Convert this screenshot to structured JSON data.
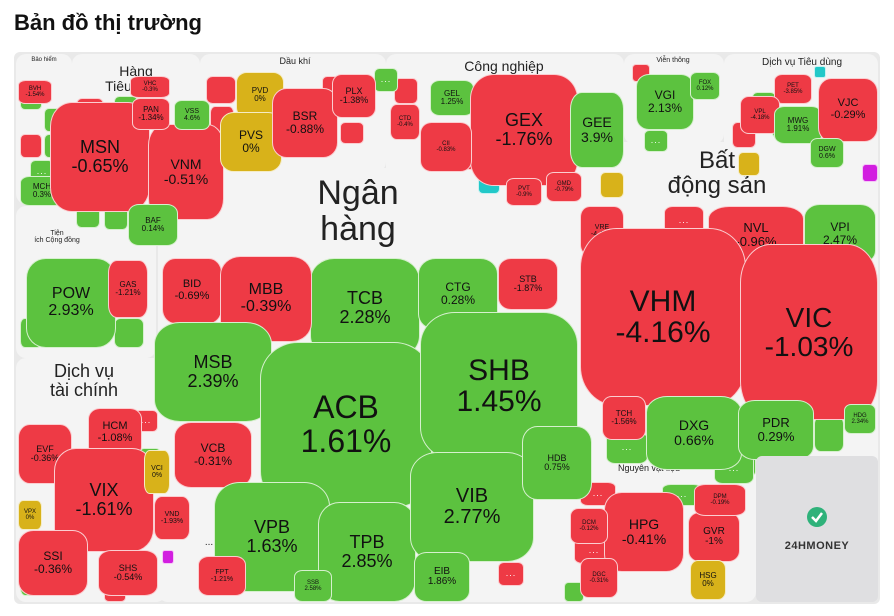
{
  "page": {
    "title": "Bản đồ thị trường"
  },
  "colors": {
    "up": "#5cc23f",
    "down": "#ee3a45",
    "flat": "#d8b21a",
    "ceiling": "#d21ee0",
    "floor": "#22c8c8"
  },
  "brand": {
    "logo_text": "24HMONEY",
    "icon": "24hmoney-logo-icon"
  },
  "more_label": "...",
  "groups": [
    {
      "id": "bao-hiem",
      "label": "Bảo hiểm"
    },
    {
      "id": "hang-tieu-dung",
      "label": "Hàng\nTiêu dùng"
    },
    {
      "id": "dau-khi",
      "label": "Dầu khí"
    },
    {
      "id": "cong-nghiep",
      "label": "Công nghiệp"
    },
    {
      "id": "vien-thong",
      "label": "Viễn thông"
    },
    {
      "id": "dich-vu-tieu-dung",
      "label": "Dịch vụ Tiêu dùng"
    },
    {
      "id": "ngan-hang",
      "label": "Ngân\nhàng"
    },
    {
      "id": "bat-dong-san",
      "label": "Bất\nđộng sản"
    },
    {
      "id": "tien-ich",
      "label": "Tiện\ních Cộng đồng"
    },
    {
      "id": "dich-vu-tai-chinh",
      "label": "Dịch vụ\ntài chính"
    },
    {
      "id": "nguyen-vat-lieu",
      "label": "Nguyên vật liệu"
    },
    {
      "id": "cong-nghe",
      "label": "..."
    }
  ],
  "stocks": [
    {
      "t": "BVH",
      "p": "-1.54%",
      "c": "r"
    },
    {
      "t": "MSN",
      "p": "-0.65%",
      "c": "r"
    },
    {
      "t": "VNM",
      "p": "-0.51%",
      "c": "r"
    },
    {
      "t": "PAN",
      "p": "-1.34%",
      "c": "r"
    },
    {
      "t": "VHC",
      "p": "-0.3%",
      "c": "r"
    },
    {
      "t": "VSS",
      "p": "4.6%",
      "c": "g"
    },
    {
      "t": "BAF",
      "p": "0.14%",
      "c": "g"
    },
    {
      "t": "MCH",
      "p": "0.3%",
      "c": "g"
    },
    {
      "t": "PVD",
      "p": "0%",
      "c": "y"
    },
    {
      "t": "PVS",
      "p": "0%",
      "c": "y"
    },
    {
      "t": "BSR",
      "p": "-0.88%",
      "c": "r"
    },
    {
      "t": "PLX",
      "p": "-1.38%",
      "c": "r"
    },
    {
      "t": "GEL",
      "p": "1.25%",
      "c": "g"
    },
    {
      "t": "GEX",
      "p": "-1.76%",
      "c": "r"
    },
    {
      "t": "GEE",
      "p": "3.9%",
      "c": "g"
    },
    {
      "t": "CTD",
      "p": "-0.4%",
      "c": "r"
    },
    {
      "t": "CII",
      "p": "-0.83%",
      "c": "r"
    },
    {
      "t": "PVT",
      "p": "-0.9%",
      "c": "r"
    },
    {
      "t": "GMD",
      "p": "-0.79%",
      "c": "r"
    },
    {
      "t": "VGI",
      "p": "2.13%",
      "c": "g"
    },
    {
      "t": "FOX",
      "p": "0.12%",
      "c": "g"
    },
    {
      "t": "PET",
      "p": "-3.85%",
      "c": "r"
    },
    {
      "t": "VPL",
      "p": "-4.18%",
      "c": "r"
    },
    {
      "t": "MWG",
      "p": "1.91%",
      "c": "g"
    },
    {
      "t": "VJC",
      "p": "-0.29%",
      "c": "r"
    },
    {
      "t": "DGW",
      "p": "0.6%",
      "c": "g"
    },
    {
      "t": "TCB",
      "p": "2.28%",
      "c": "g"
    },
    {
      "t": "CTG",
      "p": "0.28%",
      "c": "g"
    },
    {
      "t": "STB",
      "p": "-1.87%",
      "c": "r"
    },
    {
      "t": "BID",
      "p": "-0.69%",
      "c": "r"
    },
    {
      "t": "MBB",
      "p": "-0.39%",
      "c": "r"
    },
    {
      "t": "MSB",
      "p": "2.39%",
      "c": "g"
    },
    {
      "t": "ACB",
      "p": "1.61%",
      "c": "g"
    },
    {
      "t": "SHB",
      "p": "1.45%",
      "c": "g"
    },
    {
      "t": "VCB",
      "p": "-0.31%",
      "c": "r"
    },
    {
      "t": "VPB",
      "p": "1.63%",
      "c": "g"
    },
    {
      "t": "TPB",
      "p": "2.85%",
      "c": "g"
    },
    {
      "t": "VIB",
      "p": "2.77%",
      "c": "g"
    },
    {
      "t": "HDB",
      "p": "0.75%",
      "c": "g"
    },
    {
      "t": "EIB",
      "p": "1.86%",
      "c": "g"
    },
    {
      "t": "SSB",
      "p": "2.58%",
      "c": "g"
    },
    {
      "t": "VRE",
      "p": "-4.43%",
      "c": "r"
    },
    {
      "t": "NVL",
      "p": "-0.96%",
      "c": "r"
    },
    {
      "t": "VPI",
      "p": "2.47%",
      "c": "g"
    },
    {
      "t": "VHM",
      "p": "-4.16%",
      "c": "r"
    },
    {
      "t": "VIC",
      "p": "-1.03%",
      "c": "r"
    },
    {
      "t": "TCH",
      "p": "-1.56%",
      "c": "r"
    },
    {
      "t": "DXG",
      "p": "0.66%",
      "c": "g"
    },
    {
      "t": "PDR",
      "p": "0.29%",
      "c": "g"
    },
    {
      "t": "HDG",
      "p": "2.34%",
      "c": "g"
    },
    {
      "t": "POW",
      "p": "2.93%",
      "c": "g"
    },
    {
      "t": "GAS",
      "p": "-1.21%",
      "c": "r"
    },
    {
      "t": "HCM",
      "p": "-1.08%",
      "c": "r"
    },
    {
      "t": "EVF",
      "p": "-0.36%",
      "c": "r"
    },
    {
      "t": "VIX",
      "p": "-1.61%",
      "c": "r"
    },
    {
      "t": "VCI",
      "p": "0%",
      "c": "y"
    },
    {
      "t": "VPX",
      "p": "0%",
      "c": "y"
    },
    {
      "t": "SSI",
      "p": "-0.36%",
      "c": "r"
    },
    {
      "t": "SHS",
      "p": "-0.54%",
      "c": "r"
    },
    {
      "t": "VND",
      "p": "-1.93%",
      "c": "r"
    },
    {
      "t": "FPT",
      "p": "-1.21%",
      "c": "r"
    },
    {
      "t": "HPG",
      "p": "-0.41%",
      "c": "r"
    },
    {
      "t": "GVR",
      "p": "-1%",
      "c": "r"
    },
    {
      "t": "DCM",
      "p": "-0.12%",
      "c": "r"
    },
    {
      "t": "DPM",
      "p": "-0.19%",
      "c": "r"
    },
    {
      "t": "DGC",
      "p": "-0.31%",
      "c": "r"
    },
    {
      "t": "HSG",
      "p": "0%",
      "c": "y"
    }
  ]
}
